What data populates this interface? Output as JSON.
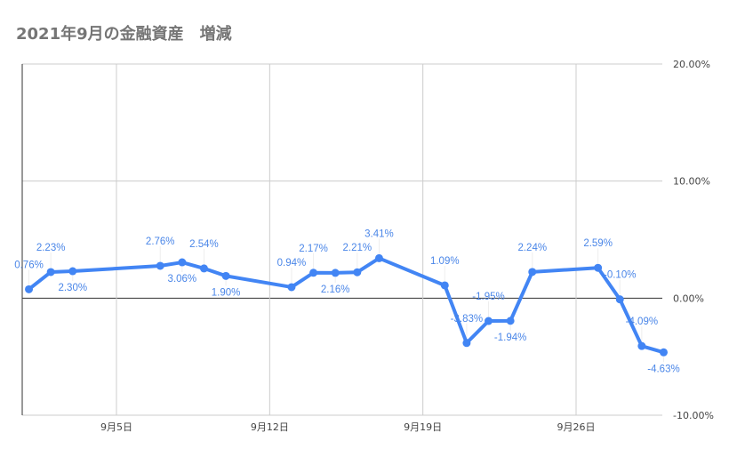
{
  "chart_data": {
    "type": "line",
    "title": "2021年9月の金融資産　増減",
    "xlabel": "",
    "ylabel": "",
    "x": [
      "2021-09-01",
      "2021-09-02",
      "2021-09-03",
      "2021-09-07",
      "2021-09-08",
      "2021-09-09",
      "2021-09-10",
      "2021-09-13",
      "2021-09-14",
      "2021-09-15",
      "2021-09-16",
      "2021-09-17",
      "2021-09-20",
      "2021-09-21",
      "2021-09-22",
      "2021-09-23",
      "2021-09-24",
      "2021-09-27",
      "2021-09-28",
      "2021-09-29",
      "2021-09-30"
    ],
    "series": [
      {
        "values": [
          0.76,
          2.23,
          2.3,
          2.76,
          3.06,
          2.54,
          1.9,
          0.94,
          2.17,
          2.16,
          2.21,
          3.41,
          1.09,
          -3.83,
          -1.95,
          -1.94,
          2.24,
          2.59,
          -0.1,
          -4.09,
          -4.63
        ],
        "color": "#4285f4"
      }
    ],
    "data_labels": [
      "0.76%",
      "2.23%",
      "2.30%",
      "2.76%",
      "3.06%",
      "2.54%",
      "1.90%",
      "0.94%",
      "2.17%",
      "2.16%",
      "2.21%",
      "3.41%",
      "1.09%",
      "-3.83%",
      "-1.95%",
      "-1.94%",
      "2.24%",
      "2.59%",
      "-0.10%",
      "-4.09%",
      "-4.63%"
    ],
    "ylim": [
      -10,
      20
    ],
    "y_ticks": [
      20,
      10,
      0,
      -10
    ],
    "y_tick_labels": [
      "20.00%",
      "10.00%",
      "0.00%",
      "-10.00%"
    ],
    "y_axis_position": "right",
    "x_ticks": [
      "2021-09-05",
      "2021-09-12",
      "2021-09-19",
      "2021-09-26"
    ],
    "x_tick_labels": [
      "9月5日",
      "9月12日",
      "9月19日",
      "9月26日"
    ],
    "grid": true,
    "legend": "none"
  }
}
